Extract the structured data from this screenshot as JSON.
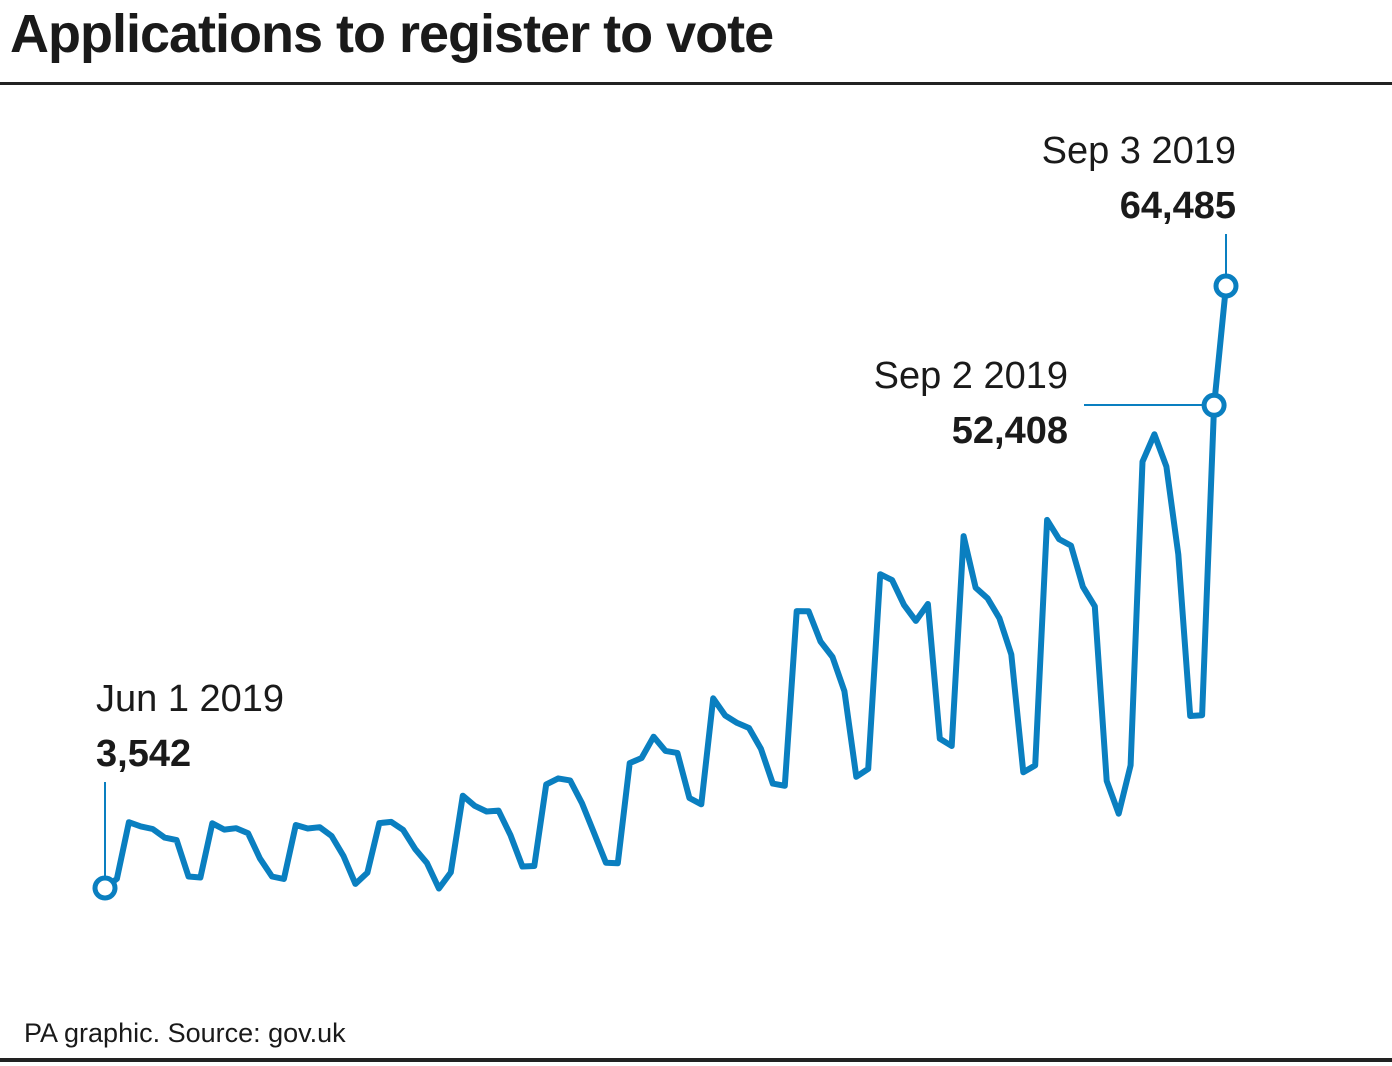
{
  "chart_data": {
    "type": "line",
    "title": "Applications to register to vote",
    "xlabel": "",
    "ylabel": "",
    "x_start": "Jun 1 2019",
    "x_end": "Sep 3 2019",
    "grid": false,
    "line_color": "#0a7fc0",
    "series": [
      {
        "values": [
          3542,
          4470,
          10200,
          9780,
          9510,
          8640,
          8390,
          4710,
          4610,
          10090,
          9450,
          9600,
          9080,
          6520,
          4710,
          4450,
          9920,
          9570,
          9700,
          8810,
          6780,
          3960,
          5090,
          10110,
          10230,
          9420,
          7500,
          6060,
          3490,
          5120,
          12890,
          11860,
          11290,
          11380,
          8890,
          5720,
          5770,
          14030,
          14640,
          14430,
          12120,
          9150,
          6100,
          6040,
          16190,
          16700,
          18860,
          17420,
          17220,
          12650,
          12020,
          22750,
          21020,
          20260,
          19740,
          17640,
          14110,
          13890,
          31570,
          31560,
          28500,
          26930,
          23470,
          14800,
          15600,
          35310,
          34710,
          32200,
          30580,
          32290,
          18660,
          17920,
          39170,
          33950,
          32880,
          30850,
          27190,
          15250,
          15950,
          40810,
          38860,
          38200,
          34030,
          32060,
          14380,
          11060,
          15960,
          46700,
          49470,
          46200,
          37310,
          20950,
          21040,
          52408,
          64485
        ]
      }
    ],
    "annotations": [
      {
        "date": "Jun 1 2019",
        "value": "3,542"
      },
      {
        "date": "Sep 2 2019",
        "value": "52,408"
      },
      {
        "date": "Sep 3 2019",
        "value": "64,485"
      }
    ]
  },
  "source": "PA graphic. Source: gov.uk"
}
